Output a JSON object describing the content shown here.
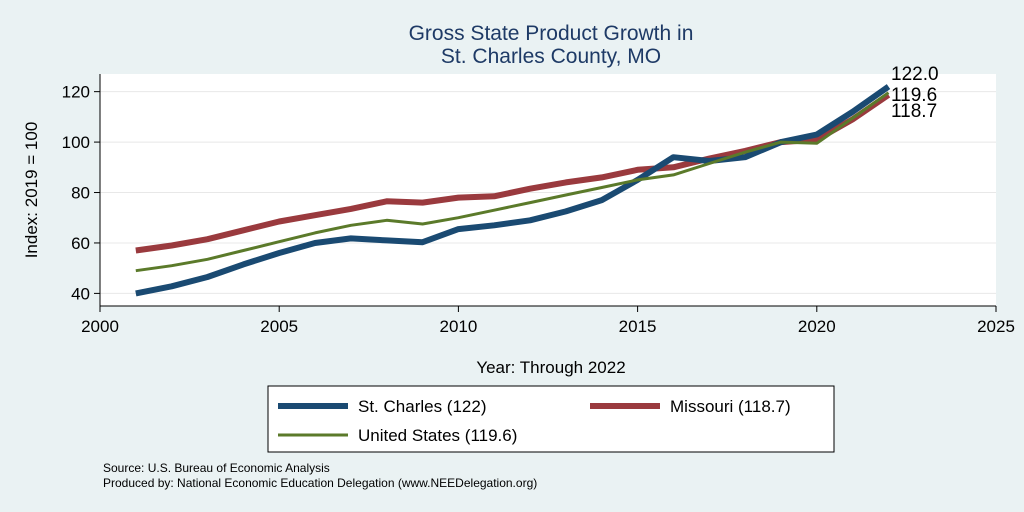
{
  "chart_data": {
    "type": "line",
    "title": [
      "Gross State Product Growth in",
      "St. Charles County, MO"
    ],
    "xlabel": "Year: Through 2022",
    "ylabel": "Index: 2019 = 100",
    "xlim": [
      2000,
      2025
    ],
    "ylim": [
      35,
      127
    ],
    "x_ticks": [
      2000,
      2005,
      2010,
      2015,
      2020,
      2025
    ],
    "y_ticks": [
      40,
      60,
      80,
      100,
      120
    ],
    "grid": true,
    "legend_position": "bottom",
    "series": [
      {
        "name": "St. Charles  (122)",
        "color": "#1a4a72",
        "x": [
          2001,
          2002,
          2003,
          2004,
          2005,
          2006,
          2007,
          2008,
          2009,
          2010,
          2011,
          2012,
          2013,
          2014,
          2015,
          2016,
          2017,
          2018,
          2019,
          2020,
          2021,
          2022
        ],
        "values": [
          40.0,
          42.8,
          46.5,
          51.5,
          56.0,
          60.0,
          61.8,
          61.0,
          60.3,
          65.5,
          67.0,
          69.0,
          72.5,
          77.0,
          85.0,
          94.0,
          92.5,
          94.0,
          100.0,
          103.0,
          112.0,
          122.0
        ],
        "end_label": "122.0"
      },
      {
        "name": "Missouri (118.7)",
        "color": "#9a3a3e",
        "x": [
          2001,
          2002,
          2003,
          2004,
          2005,
          2006,
          2007,
          2008,
          2009,
          2010,
          2011,
          2012,
          2013,
          2014,
          2015,
          2016,
          2017,
          2018,
          2019,
          2020,
          2021,
          2022
        ],
        "values": [
          57.0,
          59.0,
          61.5,
          65.0,
          68.5,
          71.0,
          73.5,
          76.5,
          76.0,
          78.0,
          78.5,
          81.5,
          84.0,
          86.0,
          89.0,
          90.0,
          93.5,
          96.5,
          100.0,
          101.0,
          109.0,
          118.7
        ],
        "end_label": "118.7"
      },
      {
        "name": "United States (119.6)",
        "color": "#5b7a2a",
        "x": [
          2001,
          2002,
          2003,
          2004,
          2005,
          2006,
          2007,
          2008,
          2009,
          2010,
          2011,
          2012,
          2013,
          2014,
          2015,
          2016,
          2017,
          2018,
          2019,
          2020,
          2021,
          2022
        ],
        "values": [
          49.0,
          51.0,
          53.5,
          57.0,
          60.5,
          64.0,
          67.0,
          69.0,
          67.5,
          70.0,
          73.0,
          76.0,
          79.0,
          82.0,
          85.0,
          87.0,
          91.5,
          96.0,
          100.0,
          99.5,
          109.5,
          119.6
        ],
        "end_label": "119.6"
      }
    ]
  },
  "footnotes": [
    "Source: U.S. Bureau of Economic Analysis",
    "Produced by: National Economic Education Delegation (www.NEEDelegation.org)"
  ]
}
